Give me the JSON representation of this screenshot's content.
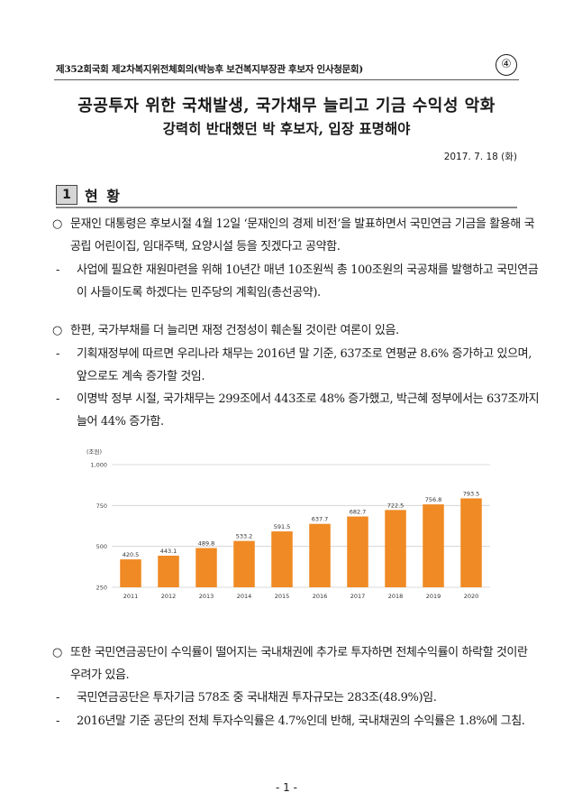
{
  "header": {
    "session": "제352회국회 제2차복지위전체회의(박능후 보건복지부장관 후보자 인사청문회)",
    "number": "④"
  },
  "title": {
    "line1": "공공투자 위한 국채발생, 국가채무 늘리고 기금 수익성 악화",
    "line2": "강력히 반대했던 박 후보자, 입장 표명해야"
  },
  "date": "2017. 7. 18 (화)",
  "section": {
    "number": "1",
    "title": "현 황"
  },
  "paragraphs": {
    "p1": {
      "bullet": "○",
      "text": "문재인 대통령은 후보시절 4월 12일 ‘문재인의 경제 비전’을 발표하면서 국민연금 기금을 활용해 국공립 어린이집, 임대주택, 요양시설 등을 짓겠다고 공약함."
    },
    "p1a": {
      "bullet": "-",
      "text": "사업에 필요한 재원마련을 위해 10년간 매년 10조원씩 총 100조원의 국공채를 발행하고 국민연금이 사들이도록 하겠다는 민주당의 계획임(총선공약)."
    },
    "p2": {
      "bullet": "○",
      "text": "한편, 국가부채를 더 늘리면 재정 건정성이 훼손될 것이란 여론이 있음."
    },
    "p2a": {
      "bullet": "-",
      "text": "기획재정부에 따르면 우리나라 채무는 2016년 말 기준, 637조로 연평균 8.6% 증가하고 있으며, 앞으로도 계속 증가할 것임."
    },
    "p2b": {
      "bullet": "-",
      "text": "이명박 정부 시절, 국가채무는 299조에서 443조로 48% 증가했고, 박근혜 정부에서는 637조까지 늘어 44% 증가함."
    },
    "p3": {
      "bullet": "○",
      "text": "또한 국민연금공단이 수익률이 떨어지는 국내채권에 추가로 투자하면 전체수익률이 하락할 것이란 우려가 있음."
    },
    "p3a": {
      "bullet": "-",
      "text": "국민연금공단은 투자기금 578조 중 국내채권 투자규모는 283조(48.9%)임."
    },
    "p3b": {
      "bullet": "-",
      "text": "2016년말 기준 공단의 전체 투자수익률은 4.7%인데 반해, 국내채권의 수익률은 1.8%에 그침."
    }
  },
  "chart_data": {
    "type": "bar",
    "unit_label": "(조원)",
    "categories": [
      "2011",
      "2012",
      "2013",
      "2014",
      "2015",
      "2016",
      "2017",
      "2018",
      "2019",
      "2020"
    ],
    "values": [
      420.5,
      443.1,
      489.8,
      533.2,
      591.5,
      637.7,
      682.7,
      722.5,
      756.8,
      793.5
    ],
    "value_labels": [
      "420.5",
      "443.1",
      "489.8",
      "533.2",
      "591.5",
      "637.7",
      "682.7",
      "722.5",
      "756.8",
      "793.5"
    ],
    "ylim": [
      250,
      1000
    ],
    "yticks": [
      250,
      500,
      750,
      1000
    ],
    "ytick_labels": [
      "250",
      "500",
      "750",
      "1,000"
    ],
    "bar_color": "#f08a24",
    "grid": true
  },
  "footer": {
    "page": "- 1 -"
  }
}
